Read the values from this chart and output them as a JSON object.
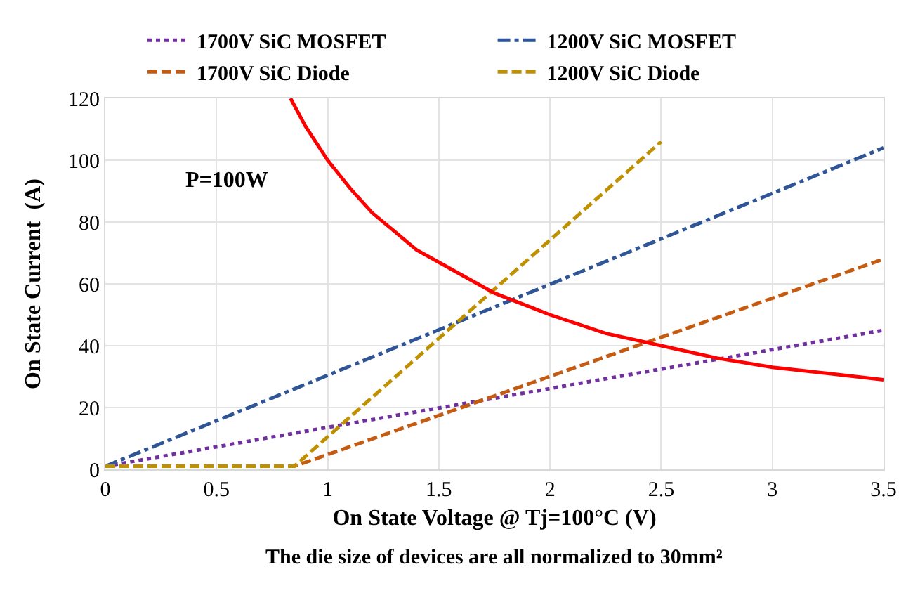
{
  "chart_data": {
    "type": "line",
    "xlabel": "On State Voltage @ Tj=100°C (V)",
    "ylabel": "On State Current  (A)",
    "annotations": [
      "P=100W",
      "The die size of devices are all normalized to 30mm²"
    ],
    "xlim": [
      0,
      3.5
    ],
    "xticks": [
      0,
      0.5,
      1,
      1.5,
      2,
      2.5,
      3,
      3.5
    ],
    "ylim": [
      0,
      120
    ],
    "yticks": [
      0,
      20,
      40,
      60,
      80,
      100,
      120
    ],
    "grid": true,
    "legend": "top",
    "marker": "none",
    "series": [
      {
        "name": "1700V SiC MOSFET",
        "color": "#7030a0",
        "line_style": "dotted",
        "x": [
          0,
          3.5
        ],
        "values": [
          1,
          45
        ]
      },
      {
        "name": "1200V SiC MOSFET",
        "color": "#2f5597",
        "line_style": "dashdot",
        "x": [
          0,
          3.5
        ],
        "values": [
          1,
          104
        ]
      },
      {
        "name": "1700V SiC Diode",
        "color": "#c55a11",
        "line_style": "dashed",
        "x": [
          0,
          0.85,
          3.5
        ],
        "values": [
          1,
          1,
          68
        ]
      },
      {
        "name": "1200V SiC Diode",
        "color": "#bf9000",
        "line_style": "dashed",
        "x": [
          0,
          0.85,
          2.5
        ],
        "values": [
          1,
          1,
          106
        ]
      },
      {
        "color": "#ff0000",
        "line_style": "solid",
        "x": [
          0.833,
          0.9,
          1,
          1.1,
          1.2,
          1.3,
          1.4,
          1.5,
          1.75,
          2,
          2.25,
          2.5,
          2.75,
          3,
          3.25,
          3.5
        ],
        "values": [
          120,
          111,
          100,
          91,
          83,
          77,
          71,
          67,
          57,
          50,
          44,
          40,
          36,
          33,
          31,
          29
        ]
      }
    ]
  }
}
